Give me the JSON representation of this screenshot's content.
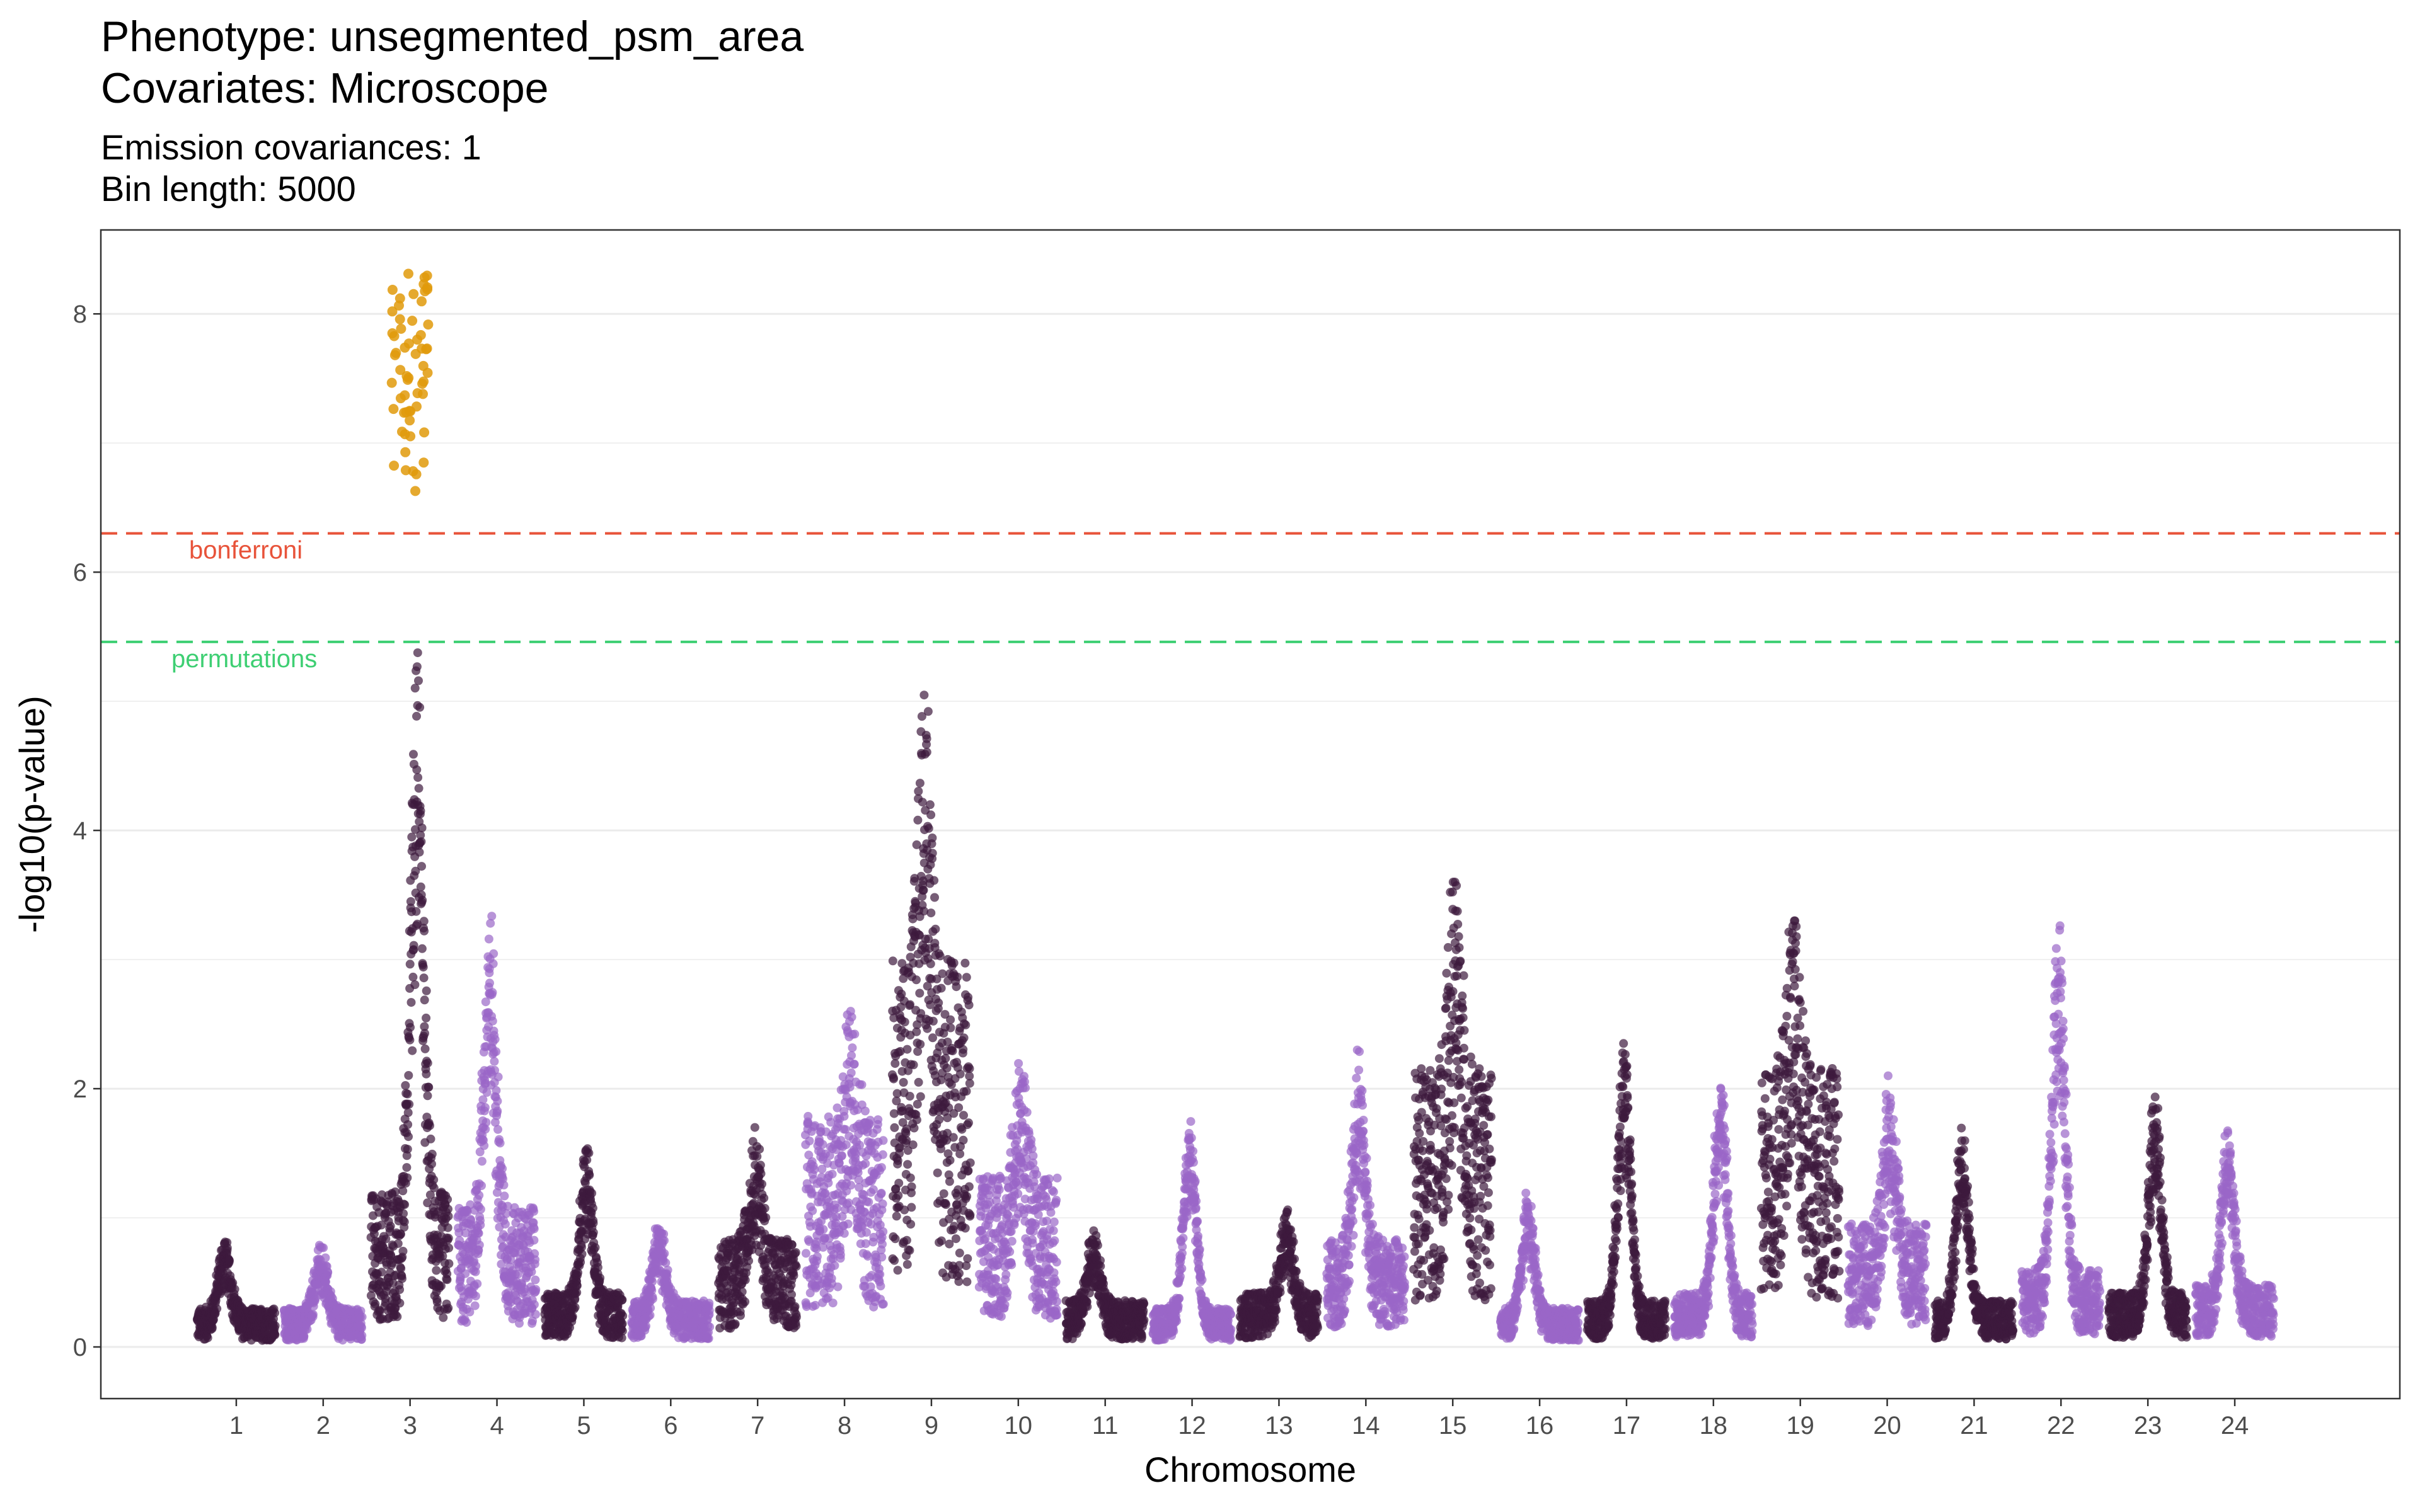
{
  "header": {
    "title_line1": "Phenotype:  unsegmented_psm_area",
    "title_line2": "Covariates:  Microscope",
    "subtitle_line1": "Emission covariances:  1",
    "subtitle_line2": "Bin length:  5000"
  },
  "chart_data": {
    "type": "scatter",
    "subtype": "manhattan",
    "xlabel": "Chromosome",
    "ylabel": "-log10(p-value)",
    "ylim": [
      -0.4,
      8.65
    ],
    "yticks": [
      0,
      2,
      4,
      6,
      8
    ],
    "grid": true,
    "colors": {
      "odd_chromosome": "#3d1a3d",
      "even_chromosome": "#9a66c8",
      "significant": "#e09a0a",
      "bonferroni": "#e8533a",
      "permutations": "#3ecf73"
    },
    "reference_lines": [
      {
        "name": "bonferroni",
        "label": "bonferroni",
        "y": 6.3
      },
      {
        "name": "permutations",
        "label": "permutations",
        "y": 5.46
      }
    ],
    "chromosomes": [
      {
        "label": "1",
        "x": 1,
        "baseline": 0.25,
        "peak": 0.85
      },
      {
        "label": "2",
        "x": 2,
        "baseline": 0.25,
        "peak": 0.8
      },
      {
        "label": "3",
        "x": 3,
        "baseline": 1.0,
        "peak": 5.4,
        "significant_max": 8.35
      },
      {
        "label": "4",
        "x": 4,
        "baseline": 0.9,
        "peak": 3.4
      },
      {
        "label": "5",
        "x": 5,
        "baseline": 0.35,
        "peak": 1.6
      },
      {
        "label": "6",
        "x": 6,
        "baseline": 0.3,
        "peak": 1.0
      },
      {
        "label": "7",
        "x": 7,
        "baseline": 0.7,
        "peak": 1.7
      },
      {
        "label": "8",
        "x": 8,
        "baseline": 1.5,
        "peak": 2.6
      },
      {
        "label": "9",
        "x": 9,
        "baseline": 2.5,
        "peak": 5.2
      },
      {
        "label": "10",
        "x": 10,
        "baseline": 1.1,
        "peak": 2.2
      },
      {
        "label": "11",
        "x": 11,
        "baseline": 0.3,
        "peak": 0.9
      },
      {
        "label": "12",
        "x": 12,
        "baseline": 0.25,
        "peak": 1.8
      },
      {
        "label": "13",
        "x": 13,
        "baseline": 0.35,
        "peak": 1.1
      },
      {
        "label": "14",
        "x": 14,
        "baseline": 0.7,
        "peak": 2.3
      },
      {
        "label": "15",
        "x": 15,
        "baseline": 1.8,
        "peak": 3.6
      },
      {
        "label": "16",
        "x": 16,
        "baseline": 0.25,
        "peak": 1.2
      },
      {
        "label": "17",
        "x": 17,
        "baseline": 0.3,
        "peak": 2.35
      },
      {
        "label": "18",
        "x": 18,
        "baseline": 0.35,
        "peak": 2.2
      },
      {
        "label": "19",
        "x": 19,
        "baseline": 1.8,
        "peak": 3.3
      },
      {
        "label": "20",
        "x": 20,
        "baseline": 0.8,
        "peak": 2.1
      },
      {
        "label": "21",
        "x": 21,
        "baseline": 0.3,
        "peak": 1.75
      },
      {
        "label": "22",
        "x": 22,
        "baseline": 0.5,
        "peak": 3.3
      },
      {
        "label": "23",
        "x": 23,
        "baseline": 0.35,
        "peak": 2.0
      },
      {
        "label": "24",
        "x": 24,
        "baseline": 0.4,
        "peak": 1.75
      }
    ]
  }
}
